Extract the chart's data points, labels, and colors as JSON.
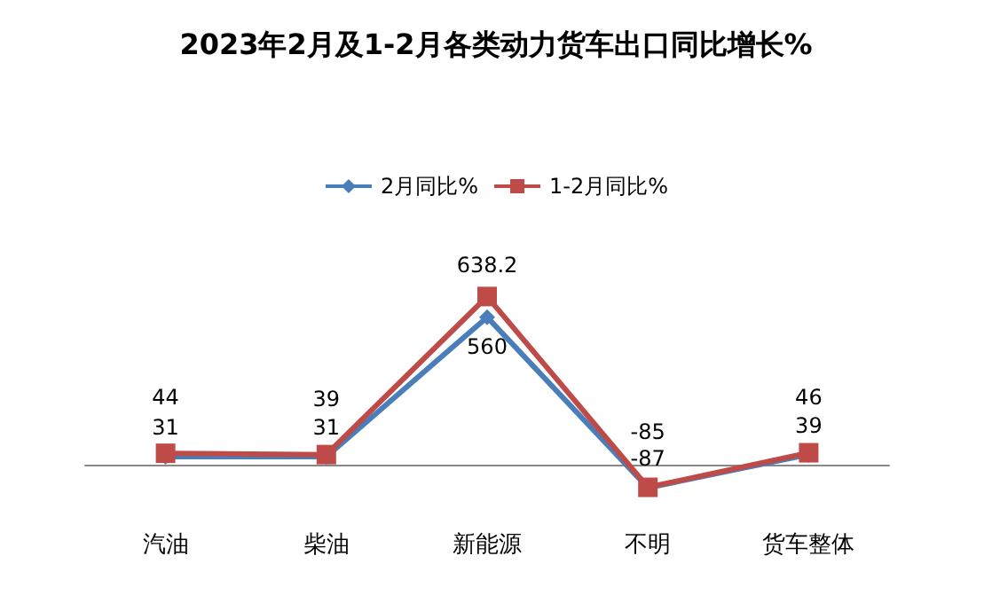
{
  "chart_data": {
    "type": "line",
    "title": "2023年2月及1-2月各类动力货车出口同比增长%",
    "categories": [
      "汽油",
      "柴油",
      "新能源",
      "不明",
      "货车整体"
    ],
    "series": [
      {
        "name": "2月同比%",
        "color": "#4a7ebb",
        "marker": "diamond",
        "values": [
          31,
          31,
          560,
          -87,
          39
        ]
      },
      {
        "name": "1-2月同比%",
        "color": "#be4b48",
        "marker": "square",
        "values": [
          44,
          39,
          638.2,
          -85,
          46
        ]
      }
    ],
    "data_labels": true,
    "legend": "top",
    "grid": false
  }
}
